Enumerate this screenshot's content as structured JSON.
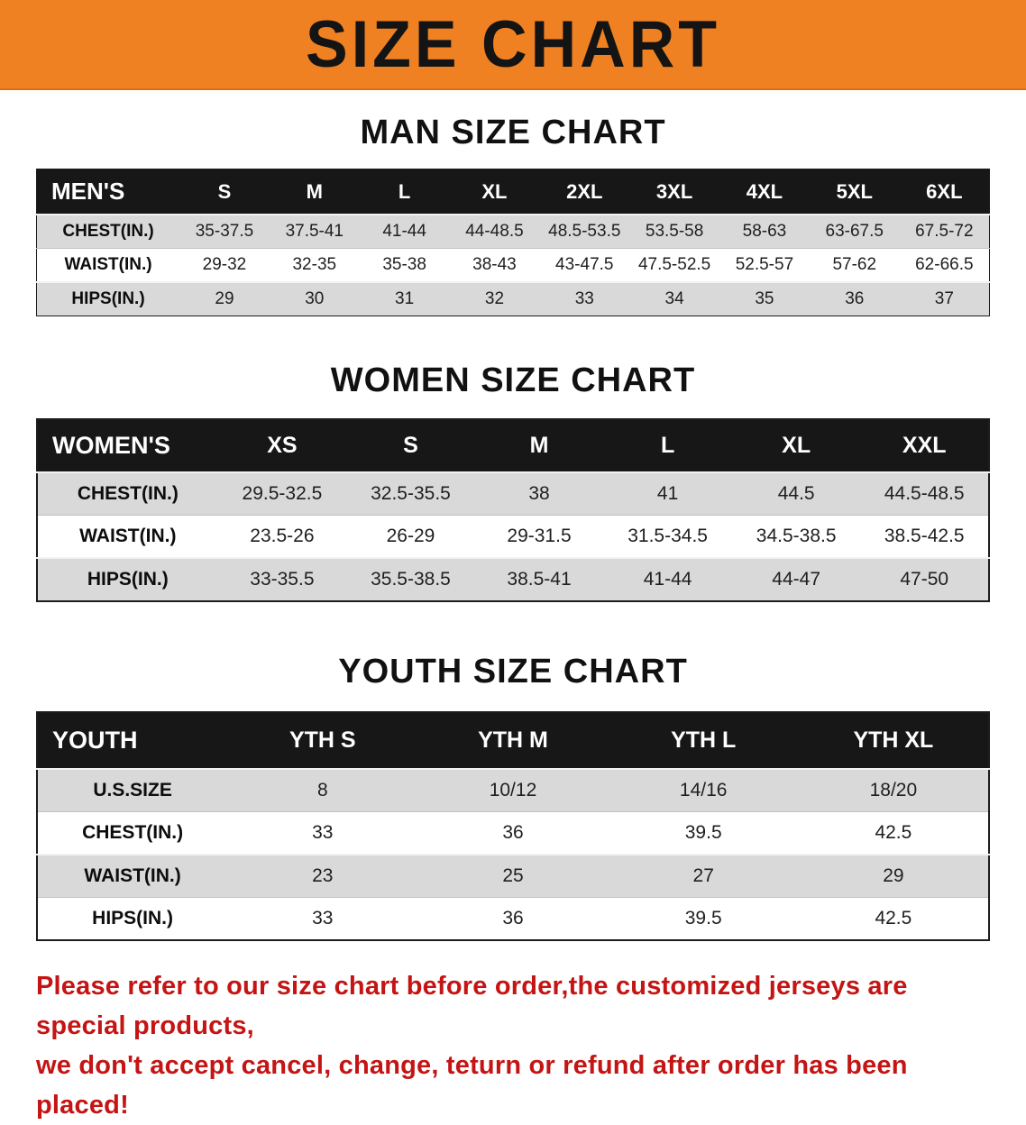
{
  "banner": {
    "title": "SIZE CHART"
  },
  "colors": {
    "banner_bg": "#f08122",
    "table_header_bg": "#171717",
    "row_stripe": "#d9d9d9",
    "notice_text": "#c41414"
  },
  "sections": [
    {
      "heading": "MAN SIZE CHART",
      "table": {
        "header": [
          "MEN'S",
          "S",
          "M",
          "L",
          "XL",
          "2XL",
          "3XL",
          "4XL",
          "5XL",
          "6XL"
        ],
        "rows": [
          [
            "CHEST(IN.)",
            "35-37.5",
            "37.5-41",
            "41-44",
            "44-48.5",
            "48.5-53.5",
            "53.5-58",
            "58-63",
            "63-67.5",
            "67.5-72"
          ],
          [
            "WAIST(IN.)",
            "29-32",
            "32-35",
            "35-38",
            "38-43",
            "43-47.5",
            "47.5-52.5",
            "52.5-57",
            "57-62",
            "62-66.5"
          ],
          [
            "HIPS(IN.)",
            "29",
            "30",
            "31",
            "32",
            "33",
            "34",
            "35",
            "36",
            "37"
          ]
        ]
      }
    },
    {
      "heading": "WOMEN SIZE CHART",
      "table": {
        "header": [
          "WOMEN'S",
          "XS",
          "S",
          "M",
          "L",
          "XL",
          "XXL"
        ],
        "rows": [
          [
            "CHEST(IN.)",
            "29.5-32.5",
            "32.5-35.5",
            "38",
            "41",
            "44.5",
            "44.5-48.5"
          ],
          [
            "WAIST(IN.)",
            "23.5-26",
            "26-29",
            "29-31.5",
            "31.5-34.5",
            "34.5-38.5",
            "38.5-42.5"
          ],
          [
            "HIPS(IN.)",
            "33-35.5",
            "35.5-38.5",
            "38.5-41",
            "41-44",
            "44-47",
            "47-50"
          ]
        ]
      }
    },
    {
      "heading": "YOUTH SIZE CHART",
      "table": {
        "header": [
          "YOUTH",
          "YTH S",
          "YTH M",
          "YTH L",
          "YTH XL"
        ],
        "rows": [
          [
            "U.S.SIZE",
            "8",
            "10/12",
            "14/16",
            "18/20"
          ],
          [
            "CHEST(IN.)",
            "33",
            "36",
            "39.5",
            "42.5"
          ],
          [
            "WAIST(IN.)",
            "23",
            "25",
            "27",
            "29"
          ],
          [
            "HIPS(IN.)",
            "33",
            "36",
            "39.5",
            "42.5"
          ]
        ]
      }
    }
  ],
  "footer": {
    "line1": "Please refer to our size chart before order,the customized jerseys are special products,",
    "line2": "we don't accept cancel, change, teturn or refund after order has been placed!"
  }
}
